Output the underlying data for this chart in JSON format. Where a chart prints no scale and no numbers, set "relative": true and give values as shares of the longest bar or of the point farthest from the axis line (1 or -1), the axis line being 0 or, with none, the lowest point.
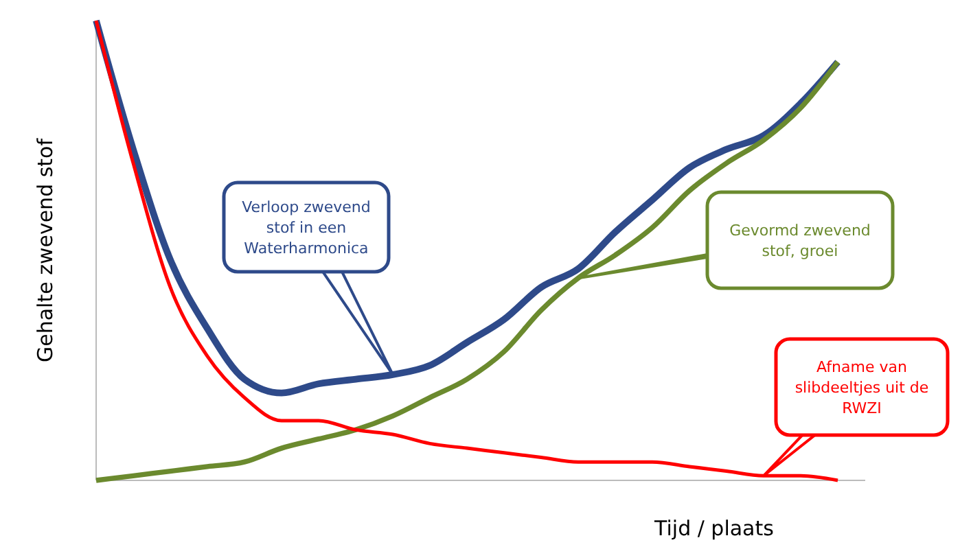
{
  "chart_data": {
    "type": "line",
    "relative": true,
    "ylabel": "Gehalte zwevend stof",
    "xlabel": "Tijd / plaats",
    "categories": [
      null,
      null,
      null,
      null,
      null,
      null,
      null,
      null,
      null,
      null,
      null,
      null,
      null,
      null,
      null,
      null,
      null,
      null,
      null,
      null,
      null
    ],
    "series": [
      {
        "name": "Verloop zwevend stof in een Waterharmonica",
        "color": "#2e4a8a",
        "values": [
          1.0,
          0.72,
          0.48,
          0.33,
          0.22,
          0.19,
          0.21,
          0.22,
          0.23,
          0.25,
          0.3,
          0.35,
          0.42,
          0.46,
          0.54,
          0.61,
          0.68,
          0.72,
          0.75,
          0.82,
          0.91
        ]
      },
      {
        "name": "Gevormd zwevend stof, groei",
        "color": "#6b8a2e",
        "values": [
          0.0,
          0.01,
          0.02,
          0.03,
          0.04,
          0.07,
          0.09,
          0.11,
          0.14,
          0.18,
          0.22,
          0.28,
          0.37,
          0.44,
          0.49,
          0.55,
          0.63,
          0.69,
          0.74,
          0.81,
          0.91
        ]
      },
      {
        "name": "Afname van slibdeeltjes uit de RWZI",
        "color": "#ff0000",
        "values": [
          1.0,
          0.69,
          0.42,
          0.27,
          0.18,
          0.13,
          0.13,
          0.11,
          0.1,
          0.08,
          0.07,
          0.06,
          0.05,
          0.04,
          0.04,
          0.04,
          0.03,
          0.02,
          0.01,
          0.01,
          0.0
        ]
      }
    ]
  }
}
